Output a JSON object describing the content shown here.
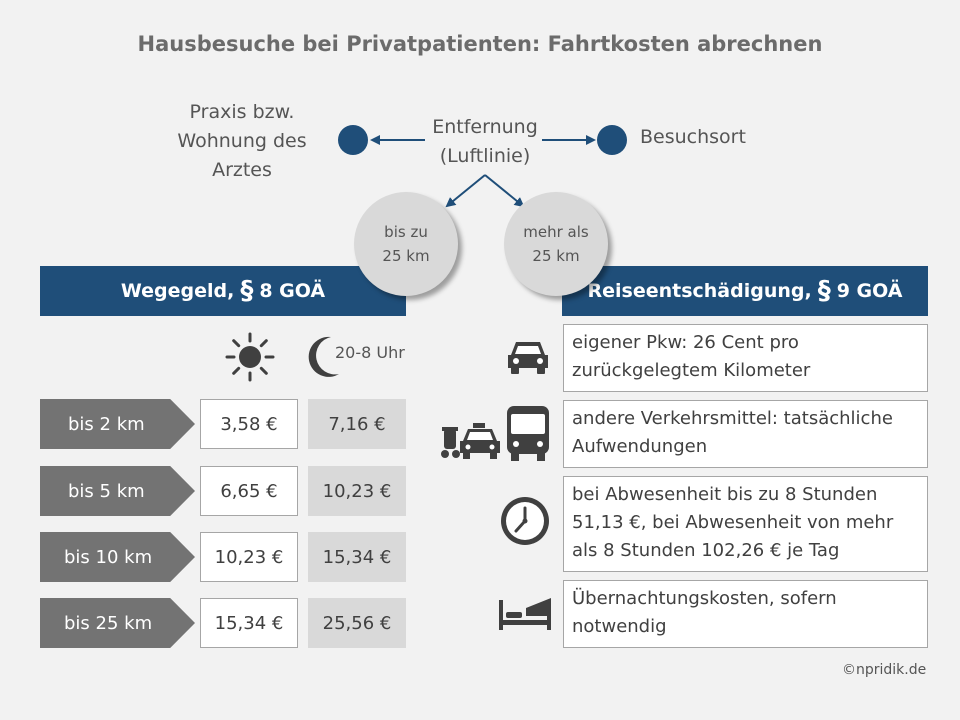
{
  "title": "Hausbesuche bei Privatpatienten: Fahrtkosten abrechnen",
  "diagram": {
    "left_label": "Praxis bzw. Wohnung des Arztes",
    "distance_label": "Entfernung (Luftlinie)",
    "right_label": "Besuchsort",
    "bubble_left": {
      "line1": "bis zu",
      "line2": "25 km"
    },
    "bubble_right": {
      "line1": "mehr als",
      "line2": "25 km"
    }
  },
  "left_section": {
    "heading_pre": "Wegegeld,",
    "heading_para": "§",
    "heading_post": "8 GOÄ",
    "night_label": "20-8 Uhr",
    "rows": [
      {
        "range": "bis 2 km",
        "day": "3,58 €",
        "night": "7,16 €"
      },
      {
        "range": "bis 5 km",
        "day": "6,65 €",
        "night": "10,23 €"
      },
      {
        "range": "bis 10 km",
        "day": "10,23 €",
        "night": "15,34 €"
      },
      {
        "range": "bis 25 km",
        "day": "15,34 €",
        "night": "25,56 €"
      }
    ]
  },
  "right_section": {
    "heading_pre": "Reiseentschädigung,",
    "heading_para": "§",
    "heading_post": "9 GOÄ",
    "items": [
      {
        "icon": "car-icon",
        "text": "eigener Pkw: 26 Cent pro zurückgelegtem Kilometer"
      },
      {
        "icon": "transport-icons",
        "text": "andere Verkehrsmittel: tatsächliche Aufwendungen"
      },
      {
        "icon": "clock-icon",
        "text": "bei Abwesenheit bis zu 8 Stunden 51,13 €, bei Abwesenheit von mehr als 8 Stunden 102,26 € je Tag"
      },
      {
        "icon": "bed-icon",
        "text": "Übernachtungskosten, sofern notwendig"
      }
    ]
  },
  "copyright": "©npridik.de",
  "colors": {
    "navy": "#1f4e79",
    "tag_gray": "#737373",
    "night_cell": "#d9d9d9",
    "background": "#f2f2f2"
  }
}
